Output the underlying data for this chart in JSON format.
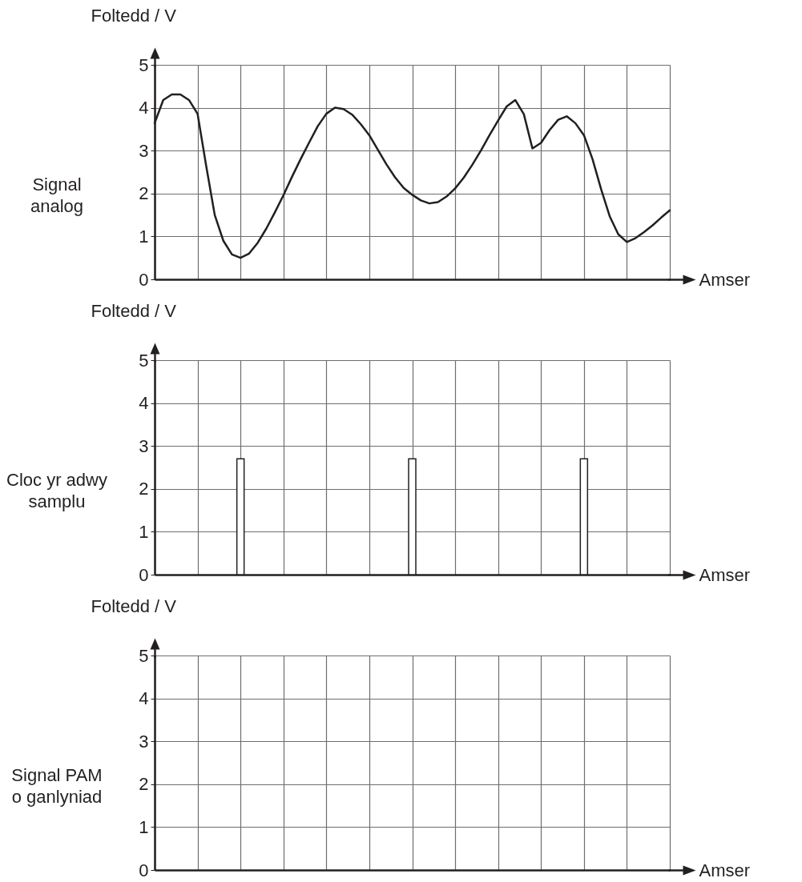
{
  "chart_data": [
    {
      "type": "line",
      "title": "Signal\nanalog",
      "ylabel": "Foltedd / V",
      "xlabel": "Amser",
      "color": "#231f20",
      "categories": [
        null,
        null,
        null,
        null,
        null,
        null,
        null,
        null,
        null,
        null,
        null,
        null,
        null,
        null,
        null,
        null,
        null,
        null,
        null,
        null,
        null,
        null,
        null,
        null,
        null,
        null,
        null,
        null,
        null,
        null,
        null,
        null,
        null,
        null,
        null,
        null,
        null,
        null,
        null,
        null,
        null,
        null,
        null,
        null,
        null,
        null,
        null,
        null,
        null,
        null,
        null,
        null,
        null,
        null,
        null,
        null,
        null,
        null,
        null,
        null,
        null
      ],
      "values": [
        3.64,
        4.18,
        4.31,
        4.31,
        4.18,
        3.86,
        2.65,
        1.5,
        0.9,
        0.58,
        0.5,
        0.6,
        0.85,
        1.18,
        1.56,
        1.96,
        2.39,
        2.8,
        3.19,
        3.57,
        3.86,
        4.0,
        3.97,
        3.84,
        3.62,
        3.36,
        3.02,
        2.68,
        2.38,
        2.13,
        1.97,
        1.84,
        1.77,
        1.8,
        1.93,
        2.12,
        2.37,
        2.67,
        3.0,
        3.36,
        3.7,
        4.03,
        4.18,
        3.85,
        3.05,
        3.18,
        3.48,
        3.72,
        3.8,
        3.64,
        3.36,
        2.8,
        2.1,
        1.47,
        1.05,
        0.87,
        0.96,
        1.1,
        1.26,
        1.44,
        1.61
      ],
      "ylim": [
        0,
        5
      ],
      "yticks": [
        0,
        1,
        2,
        3,
        4,
        5
      ],
      "grid": true,
      "tick_labels": "y",
      "line_style": "solid"
    },
    {
      "type": "bar",
      "title": "Cloc yr adwy\nsamplu",
      "ylabel": "Foltedd / V",
      "xlabel": "Amser",
      "color": "#ffffff",
      "categories": [
        null,
        null,
        null,
        null,
        null,
        null,
        null,
        null,
        null,
        null,
        null,
        null,
        null
      ],
      "values": [
        0,
        0,
        2.7,
        0,
        0,
        0,
        2.7,
        0,
        0,
        0,
        2.7,
        0,
        0
      ],
      "ylim": [
        0,
        5
      ],
      "yticks": [
        0,
        1,
        2,
        3,
        4,
        5
      ],
      "grid": true,
      "tick_labels": "y"
    },
    {
      "type": "line",
      "title": "Signal PAM\no ganlyniad",
      "ylabel": "Foltedd / V",
      "xlabel": "Amser",
      "color": "#231f20",
      "categories": [
        null,
        null,
        null,
        null,
        null,
        null,
        null,
        null,
        null,
        null,
        null,
        null,
        null
      ],
      "values": [
        null,
        null,
        null,
        null,
        null,
        null,
        null,
        null,
        null,
        null,
        null,
        null,
        null
      ],
      "ylim": [
        0,
        5
      ],
      "yticks": [
        0,
        1,
        2,
        3,
        4,
        5
      ],
      "grid": true,
      "tick_labels": "y"
    }
  ]
}
